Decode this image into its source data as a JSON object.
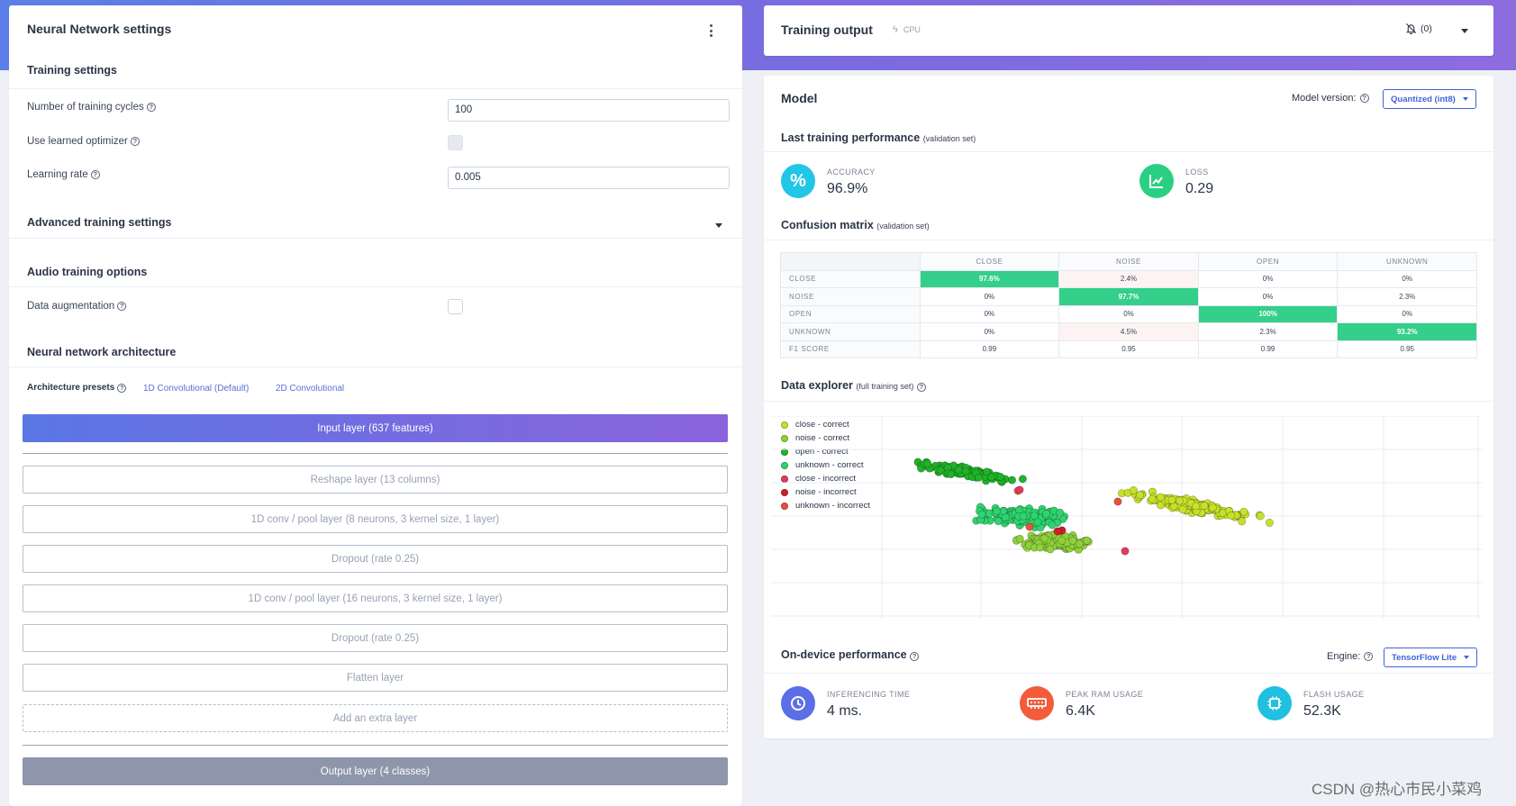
{
  "left_panel": {
    "title": "Neural Network settings",
    "training_settings": {
      "heading": "Training settings",
      "cycles_label": "Number of training cycles",
      "cycles_value": "100",
      "optimizer_label": "Use learned optimizer",
      "lr_label": "Learning rate",
      "lr_value": "0.005"
    },
    "advanced_heading": "Advanced training settings",
    "audio": {
      "heading": "Audio training options",
      "augmentation_label": "Data augmentation"
    },
    "architecture": {
      "heading": "Neural network architecture",
      "presets_label": "Architecture presets",
      "preset_1d": "1D Convolutional (Default)",
      "preset_2d": "2D Convolutional",
      "input_layer": "Input layer (637 features)",
      "layers": [
        "Reshape layer (13 columns)",
        "1D conv / pool layer (8 neurons, 3 kernel size, 1 layer)",
        "Dropout (rate 0.25)",
        "1D conv / pool layer (16 neurons, 3 kernel size, 1 layer)",
        "Dropout (rate 0.25)",
        "Flatten layer"
      ],
      "add_layer": "Add an extra layer",
      "output_layer": "Output layer (4 classes)"
    }
  },
  "training_output": {
    "title": "Training output",
    "cpu_badge": "CPU",
    "notifications": "(0)"
  },
  "model": {
    "title": "Model",
    "version_label": "Model version:",
    "version_value": "Quantized (int8)",
    "last_perf_title": "Last training performance",
    "last_perf_note": "(validation set)",
    "accuracy_label": "ACCURACY",
    "accuracy_value": "96.9%",
    "loss_label": "LOSS",
    "loss_value": "0.29",
    "confusion_title": "Confusion matrix",
    "confusion_note": "(validation set)",
    "confusion": {
      "columns": [
        "CLOSE",
        "NOISE",
        "OPEN",
        "UNKNOWN"
      ],
      "rows": [
        {
          "label": "CLOSE",
          "cells": [
            "97.6%",
            "2.4%",
            "0%",
            "0%"
          ]
        },
        {
          "label": "NOISE",
          "cells": [
            "0%",
            "97.7%",
            "0%",
            "2.3%"
          ]
        },
        {
          "label": "OPEN",
          "cells": [
            "0%",
            "0%",
            "100%",
            "0%"
          ]
        },
        {
          "label": "UNKNOWN",
          "cells": [
            "0%",
            "4.5%",
            "2.3%",
            "93.2%"
          ]
        },
        {
          "label": "F1 SCORE",
          "cells": [
            "0.99",
            "0.95",
            "0.99",
            "0.95"
          ]
        }
      ]
    },
    "explorer_title": "Data explorer",
    "explorer_note": "(full training set)",
    "legend": [
      {
        "label": "close - correct",
        "color": "#c7e12a"
      },
      {
        "label": "noise - correct",
        "color": "#8fd13b"
      },
      {
        "label": "open - correct",
        "color": "#20b229"
      },
      {
        "label": "unknown - correct",
        "color": "#2ed46f"
      },
      {
        "label": "close - incorrect",
        "color": "#e23a5e"
      },
      {
        "label": "noise - incorrect",
        "color": "#cf1f2b"
      },
      {
        "label": "unknown - incorrect",
        "color": "#e5533a"
      }
    ],
    "on_device_title": "On-device performance",
    "engine_label": "Engine:",
    "engine_value": "TensorFlow Lite",
    "inferencing_label": "INFERENCING TIME",
    "inferencing_value": "4 ms.",
    "ram_label": "PEAK RAM USAGE",
    "ram_value": "6.4K",
    "flash_label": "FLASH USAGE",
    "flash_value": "52.3K"
  },
  "watermark": "CSDN @热心市民小菜鸡",
  "colors": {
    "accent": "#3f63d8",
    "matrix_highlight": "#34cf8a",
    "accuracy_icon": "#22c6e6",
    "loss_icon": "#2bcf84",
    "inferencing_icon": "#5b6ee6",
    "ram_icon": "#f35c3a",
    "flash_icon": "#1fc0e0"
  }
}
